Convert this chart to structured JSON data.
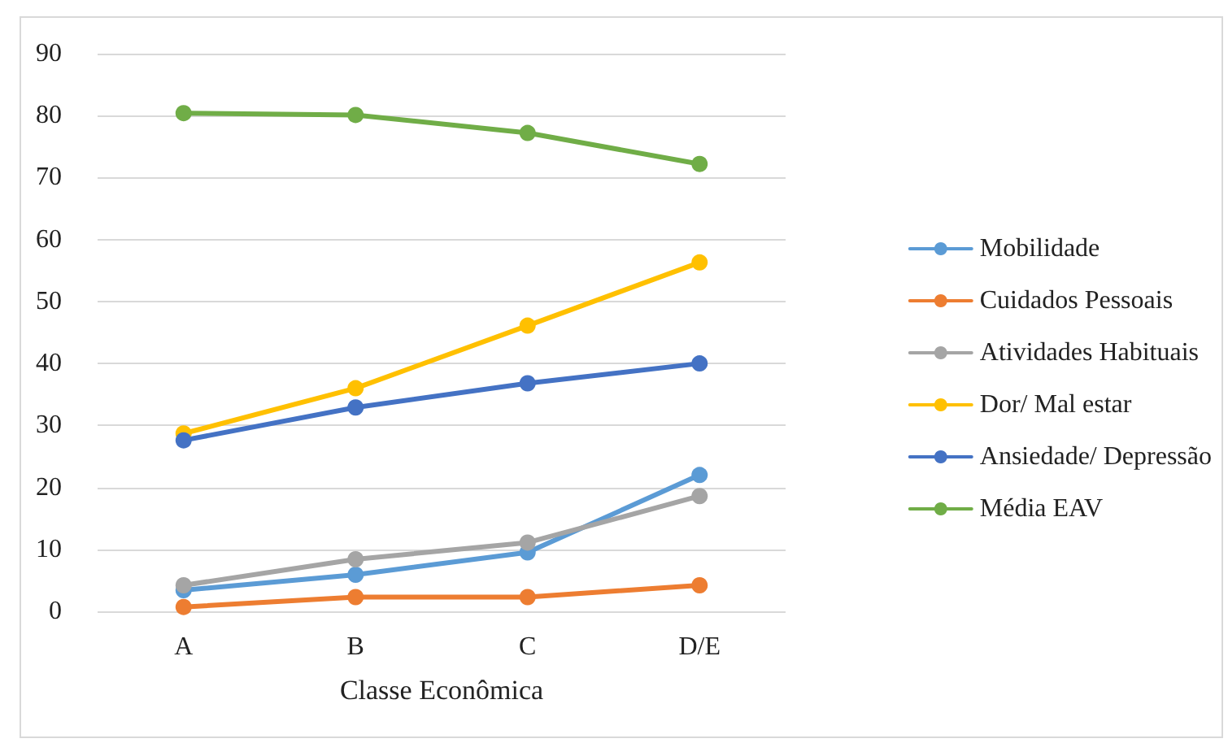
{
  "chart_data": {
    "type": "line",
    "xlabel": "Classe Econômica",
    "categories": [
      "A",
      "B",
      "C",
      "D/E"
    ],
    "series": [
      {
        "name": "Mobilidade",
        "color": "#5b9bd5",
        "values": [
          3.4,
          5.9,
          9.5,
          22
        ]
      },
      {
        "name": "Cuidados Pessoais",
        "color": "#ed7d31",
        "values": [
          0.7,
          2.3,
          2.3,
          4.2
        ]
      },
      {
        "name": "Atividades Habituais",
        "color": "#a5a5a5",
        "values": [
          4.2,
          8.4,
          11.1,
          18.6
        ]
      },
      {
        "name": "Dor/ Mal estar",
        "color": "#ffc000",
        "values": [
          28.7,
          36,
          46.1,
          56.3
        ]
      },
      {
        "name": "Ansiedade/ Depressão",
        "color": "#4472c4",
        "values": [
          27.6,
          32.9,
          36.8,
          40
        ]
      },
      {
        "name": "Média EAV",
        "color": "#70ad47",
        "values": [
          80.4,
          80.1,
          77.2,
          72.2
        ]
      }
    ],
    "ylim": [
      0,
      90
    ],
    "yticks": [
      0,
      10,
      20,
      30,
      40,
      50,
      60,
      70,
      80,
      90
    ],
    "grid": "y",
    "legend": "right",
    "marker": "circle",
    "line_style": "solid"
  }
}
